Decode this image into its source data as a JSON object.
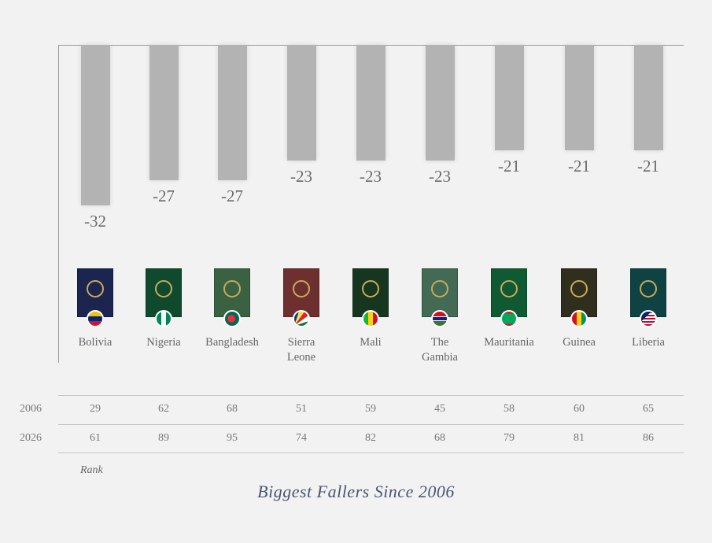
{
  "chart_data": {
    "type": "bar",
    "title": "Biggest Fallers Since 2006",
    "categories": [
      "Bolivia",
      "Nigeria",
      "Bangladesh",
      "Sierra Leone",
      "Mali",
      "The Gambia",
      "Mauritania",
      "Guinea",
      "Liberia"
    ],
    "values": [
      -32,
      -27,
      -27,
      -23,
      -23,
      -23,
      -21,
      -21,
      -21
    ],
    "ylim": [
      -32,
      0
    ],
    "grid": false,
    "table": {
      "label": "Rank",
      "rows": [
        {
          "year": "2006",
          "values": [
            "29",
            "62",
            "68",
            "51",
            "59",
            "45",
            "58",
            "60",
            "65"
          ]
        },
        {
          "year": "2026",
          "values": [
            "61",
            "89",
            "95",
            "74",
            "82",
            "68",
            "79",
            "81",
            "86"
          ]
        }
      ]
    }
  },
  "passports": [
    {
      "color": "#1c2450",
      "flag": "venezuela"
    },
    {
      "color": "#0f4a2e",
      "flag": "nigeria"
    },
    {
      "color": "#3a6242",
      "flag": "bangladesh"
    },
    {
      "color": "#6e2f2f",
      "flag": "seychelles"
    },
    {
      "color": "#16361f",
      "flag": "mali"
    },
    {
      "color": "#426a55",
      "flag": "gambia"
    },
    {
      "color": "#0f5a32",
      "flag": "mauritania"
    },
    {
      "color": "#302e1c",
      "flag": "guinea"
    },
    {
      "color": "#0f4242",
      "flag": "liberia"
    }
  ],
  "colors": {
    "bar": "#b3b3b3",
    "title": "#4a5670"
  }
}
